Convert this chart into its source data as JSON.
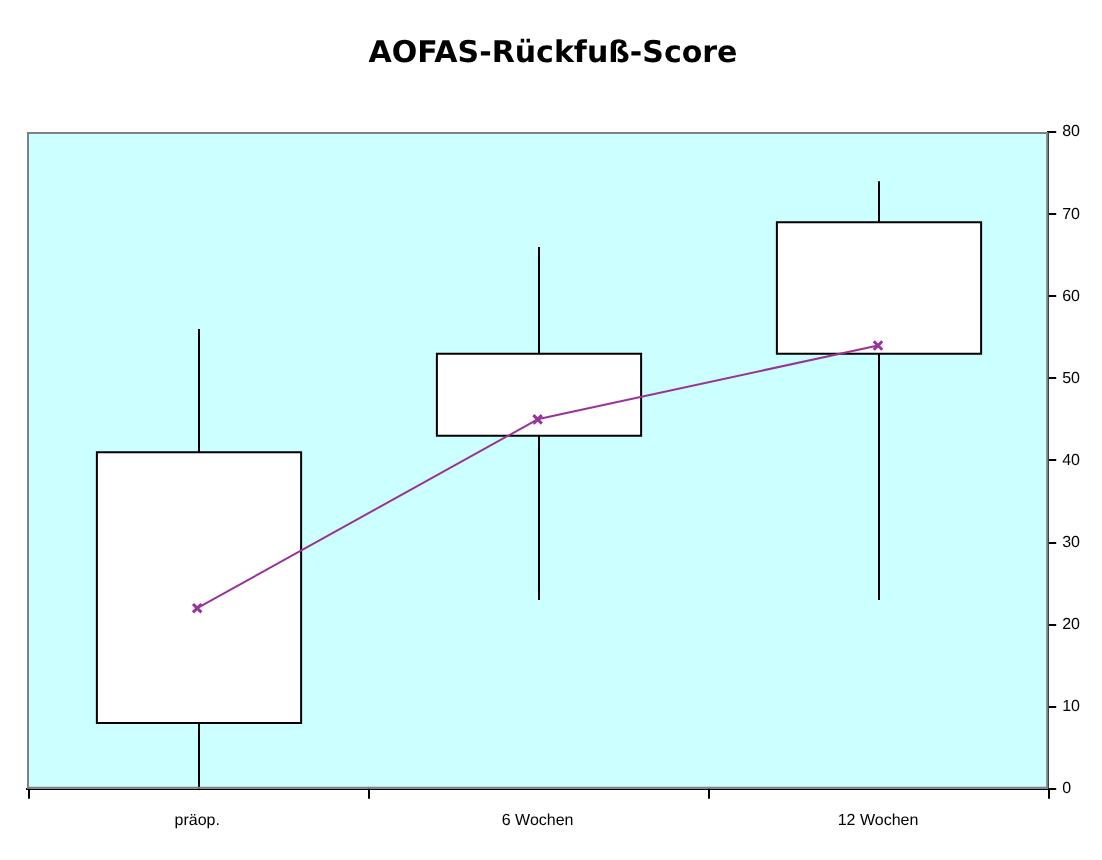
{
  "chart_data": {
    "type": "candlestick",
    "title": "AOFAS-Rückfuß-Score",
    "categories": [
      "präop.",
      "6 Wochen",
      "12 Wochen"
    ],
    "ohlc": [
      [
        8,
        56,
        0,
        41
      ],
      [
        43,
        66,
        23,
        53
      ],
      [
        53,
        74,
        23,
        69
      ]
    ],
    "series": [
      {
        "type": "line",
        "color": "#993399",
        "values": [
          22,
          45,
          54
        ]
      }
    ],
    "ylim": [
      0,
      80
    ],
    "yticks": [
      0,
      10,
      20,
      30,
      40,
      50,
      60,
      70,
      80
    ],
    "grid": false,
    "legend": false,
    "marker": "cross"
  }
}
